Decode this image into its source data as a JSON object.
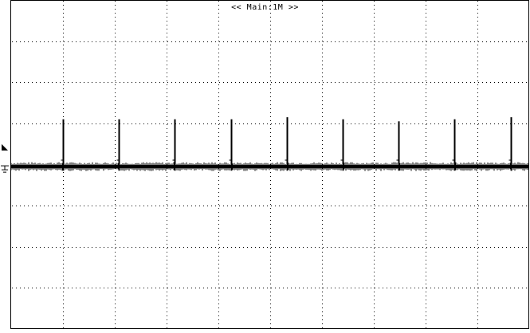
{
  "header": {
    "label": "<< Main:1M >>"
  },
  "colors": {
    "background": "#ffffff",
    "frame": "#000000",
    "grid": "#000000",
    "trace": "#000000"
  },
  "grid": {
    "divisions_x": 10,
    "divisions_y": 8,
    "style": "dotted"
  },
  "chart_data": {
    "type": "line",
    "title": "",
    "xlabel": "",
    "ylabel": "",
    "grid": true,
    "xlim": [
      0,
      10
    ],
    "ylim": [
      -4,
      4
    ],
    "baseline_level": -0.05,
    "noise_band": 0.08,
    "ground_marker_level": -0.05,
    "trigger_marker_level": 0.4,
    "pulses": [
      {
        "x": 1.0,
        "peak": 1.1,
        "dip": -0.15
      },
      {
        "x": 2.08,
        "peak": 1.1,
        "dip": -0.15
      },
      {
        "x": 3.16,
        "peak": 1.1,
        "dip": -0.15
      },
      {
        "x": 4.24,
        "peak": 1.1,
        "dip": -0.15
      },
      {
        "x": 5.32,
        "peak": 1.15,
        "dip": -0.15
      },
      {
        "x": 6.4,
        "peak": 1.1,
        "dip": -0.15
      },
      {
        "x": 7.48,
        "peak": 1.05,
        "dip": -0.15
      },
      {
        "x": 8.56,
        "peak": 1.1,
        "dip": -0.15
      },
      {
        "x": 9.64,
        "peak": 1.15,
        "dip": -0.15
      }
    ]
  }
}
